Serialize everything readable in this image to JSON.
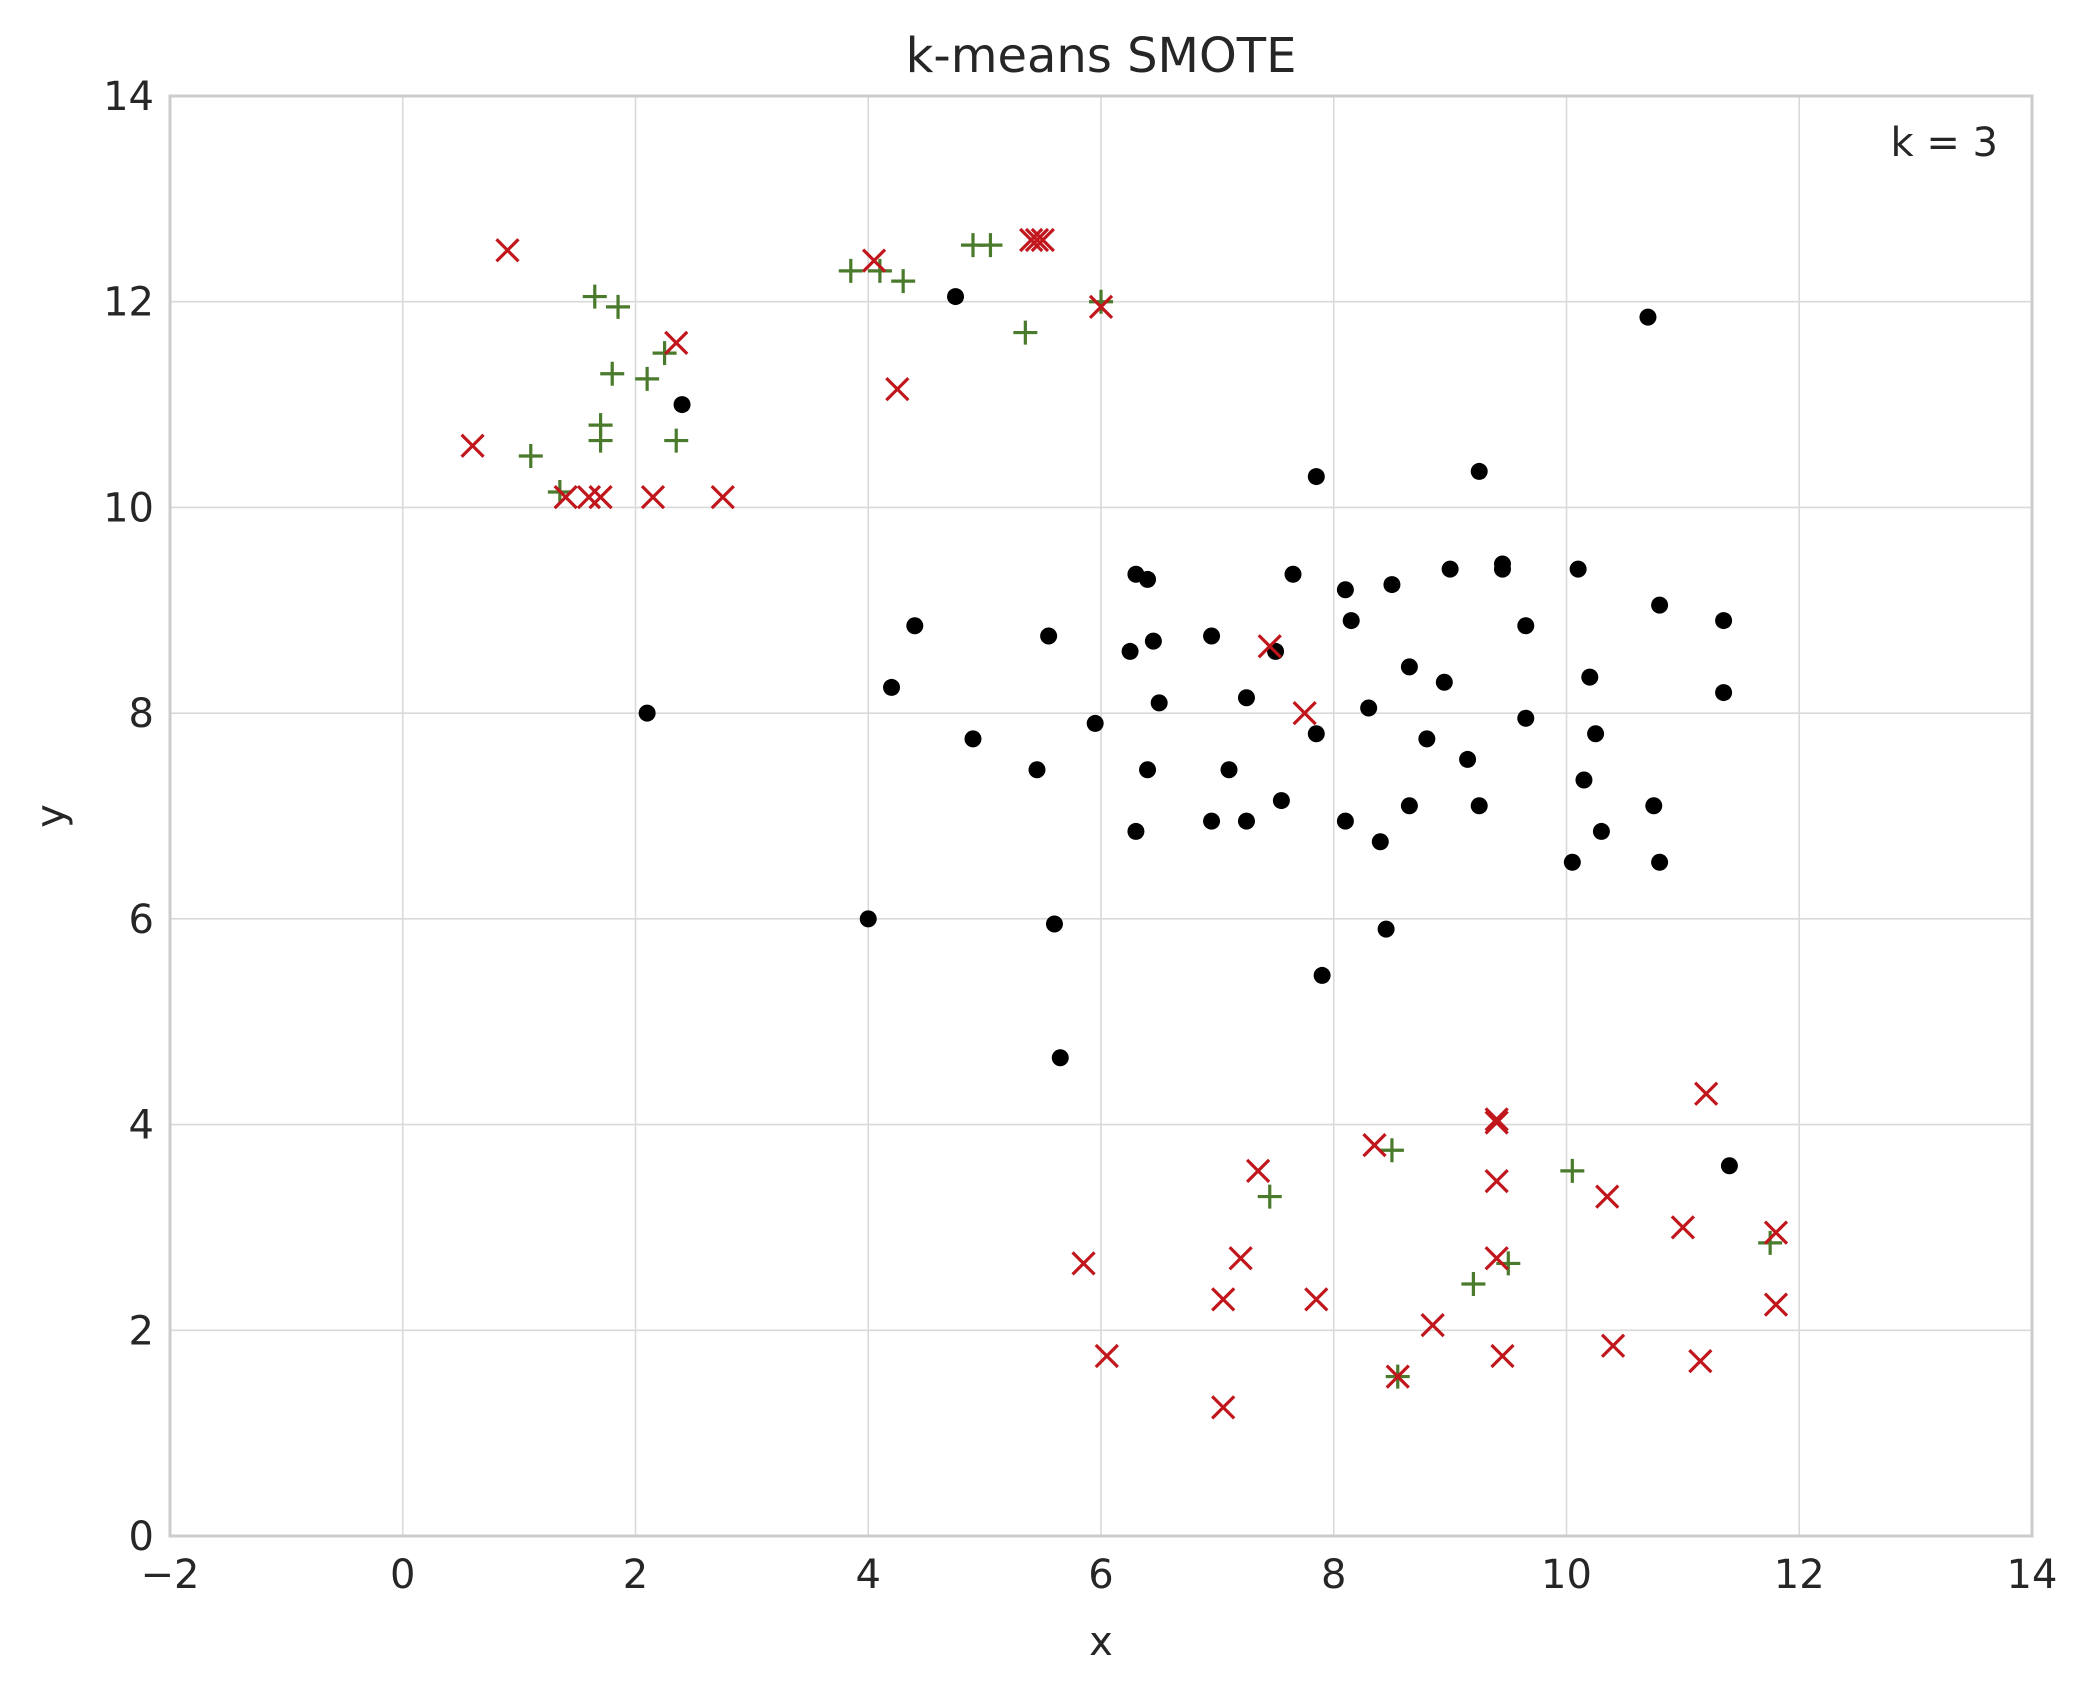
{
  "chart_data": {
    "type": "scatter",
    "title": "k-means SMOTE",
    "xlabel": "x",
    "ylabel": "y",
    "xlim": [
      -2,
      14
    ],
    "ylim": [
      0,
      14
    ],
    "xticks": [
      -2,
      0,
      2,
      4,
      6,
      8,
      10,
      12,
      14
    ],
    "yticks": [
      0,
      2,
      4,
      6,
      8,
      10,
      12,
      14
    ],
    "xtick_labels": [
      "−2",
      "0",
      "2",
      "4",
      "6",
      "8",
      "10",
      "12",
      "14"
    ],
    "ytick_labels": [
      "0",
      "2",
      "4",
      "6",
      "8",
      "10",
      "12",
      "14"
    ],
    "grid": true,
    "annotation": "k = 3",
    "series": [
      {
        "marker": "circle",
        "color": "#000000",
        "points": [
          [
            4.75,
            12.05
          ],
          [
            10.7,
            11.85
          ],
          [
            2.4,
            11.0
          ],
          [
            7.85,
            10.3
          ],
          [
            9.25,
            10.35
          ],
          [
            9.45,
            9.45
          ],
          [
            9.45,
            9.4
          ],
          [
            9.0,
            9.4
          ],
          [
            10.1,
            9.4
          ],
          [
            7.65,
            9.35
          ],
          [
            6.3,
            9.35
          ],
          [
            6.4,
            9.3
          ],
          [
            8.5,
            9.25
          ],
          [
            8.1,
            9.2
          ],
          [
            10.8,
            9.05
          ],
          [
            8.15,
            8.9
          ],
          [
            11.35,
            8.9
          ],
          [
            4.4,
            8.85
          ],
          [
            9.65,
            8.85
          ],
          [
            5.55,
            8.75
          ],
          [
            6.95,
            8.75
          ],
          [
            6.45,
            8.7
          ],
          [
            6.25,
            8.6
          ],
          [
            7.5,
            8.6
          ],
          [
            8.65,
            8.45
          ],
          [
            10.2,
            8.35
          ],
          [
            8.95,
            8.3
          ],
          [
            4.2,
            8.25
          ],
          [
            11.35,
            8.2
          ],
          [
            7.25,
            8.15
          ],
          [
            6.5,
            8.1
          ],
          [
            8.3,
            8.05
          ],
          [
            2.1,
            8.0
          ],
          [
            9.65,
            7.95
          ],
          [
            5.95,
            7.9
          ],
          [
            7.85,
            7.8
          ],
          [
            10.25,
            7.8
          ],
          [
            4.9,
            7.75
          ],
          [
            8.8,
            7.75
          ],
          [
            9.15,
            7.55
          ],
          [
            5.45,
            7.45
          ],
          [
            6.4,
            7.45
          ],
          [
            7.1,
            7.45
          ],
          [
            10.15,
            7.35
          ],
          [
            7.55,
            7.15
          ],
          [
            8.65,
            7.1
          ],
          [
            9.25,
            7.1
          ],
          [
            10.75,
            7.1
          ],
          [
            6.95,
            6.95
          ],
          [
            7.25,
            6.95
          ],
          [
            8.1,
            6.95
          ],
          [
            6.3,
            6.85
          ],
          [
            10.3,
            6.85
          ],
          [
            8.4,
            6.75
          ],
          [
            10.05,
            6.55
          ],
          [
            10.8,
            6.55
          ],
          [
            4.0,
            6.0
          ],
          [
            5.6,
            5.95
          ],
          [
            8.45,
            5.9
          ],
          [
            7.9,
            5.45
          ],
          [
            5.65,
            4.65
          ],
          [
            11.4,
            3.6
          ]
        ]
      },
      {
        "marker": "plus",
        "color": "#4a7a2c",
        "points": [
          [
            1.65,
            12.05
          ],
          [
            1.85,
            11.95
          ],
          [
            1.8,
            11.3
          ],
          [
            2.1,
            11.25
          ],
          [
            2.25,
            11.5
          ],
          [
            1.7,
            10.8
          ],
          [
            1.7,
            10.65
          ],
          [
            2.35,
            10.65
          ],
          [
            1.1,
            10.5
          ],
          [
            1.35,
            10.15
          ],
          [
            3.85,
            12.3
          ],
          [
            4.1,
            12.3
          ],
          [
            4.3,
            12.2
          ],
          [
            4.9,
            12.55
          ],
          [
            5.05,
            12.55
          ],
          [
            5.35,
            11.7
          ],
          [
            6.0,
            12.0
          ],
          [
            8.5,
            3.75
          ],
          [
            7.45,
            3.3
          ],
          [
            10.05,
            3.55
          ],
          [
            9.5,
            2.65
          ],
          [
            9.2,
            2.45
          ],
          [
            11.75,
            2.85
          ],
          [
            8.55,
            1.55
          ]
        ]
      },
      {
        "marker": "x",
        "color": "#c0161c",
        "points": [
          [
            0.9,
            12.5
          ],
          [
            2.35,
            11.6
          ],
          [
            0.6,
            10.6
          ],
          [
            1.4,
            10.1
          ],
          [
            1.6,
            10.1
          ],
          [
            1.7,
            10.1
          ],
          [
            2.15,
            10.1
          ],
          [
            2.75,
            10.1
          ],
          [
            4.05,
            12.4
          ],
          [
            4.25,
            11.15
          ],
          [
            5.4,
            12.6
          ],
          [
            5.45,
            12.6
          ],
          [
            5.5,
            12.6
          ],
          [
            6.0,
            11.95
          ],
          [
            7.45,
            8.65
          ],
          [
            7.75,
            8.0
          ],
          [
            9.4,
            4.05
          ],
          [
            9.4,
            4.02
          ],
          [
            11.2,
            4.3
          ],
          [
            8.35,
            3.8
          ],
          [
            7.35,
            3.55
          ],
          [
            9.4,
            3.45
          ],
          [
            10.35,
            3.3
          ],
          [
            11.0,
            3.0
          ],
          [
            11.8,
            2.95
          ],
          [
            5.85,
            2.65
          ],
          [
            7.2,
            2.7
          ],
          [
            9.4,
            2.7
          ],
          [
            7.05,
            2.3
          ],
          [
            7.85,
            2.3
          ],
          [
            11.8,
            2.25
          ],
          [
            8.85,
            2.05
          ],
          [
            10.4,
            1.85
          ],
          [
            6.05,
            1.75
          ],
          [
            9.45,
            1.75
          ],
          [
            11.15,
            1.7
          ],
          [
            8.55,
            1.55
          ],
          [
            7.05,
            1.25
          ]
        ]
      }
    ]
  }
}
